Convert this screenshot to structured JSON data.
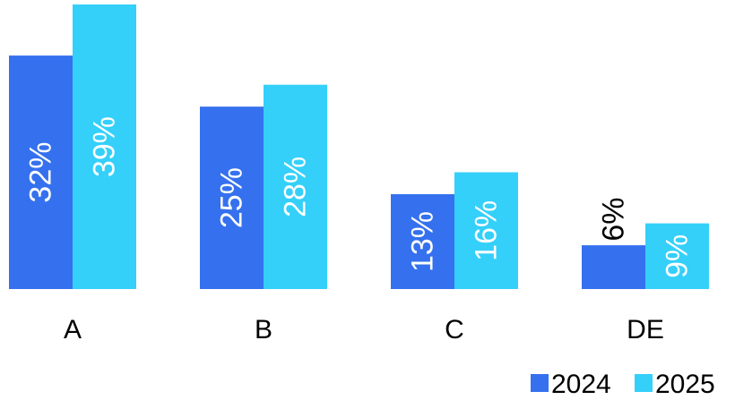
{
  "chart_data": {
    "type": "bar",
    "categories": [
      "A",
      "B",
      "C",
      "DE"
    ],
    "series": [
      {
        "name": "2024",
        "values": [
          32,
          25,
          13,
          6
        ],
        "labels": [
          "32%",
          "25%",
          "13%",
          "6%"
        ],
        "color": "#3571ee"
      },
      {
        "name": "2025",
        "values": [
          39,
          28,
          16,
          9
        ],
        "labels": [
          "39%",
          "28%",
          "16%",
          "9%"
        ],
        "color": "#34d0fa"
      }
    ],
    "title": "",
    "xlabel": "",
    "ylabel": "",
    "ylim": [
      0,
      39
    ],
    "value_unit": "%",
    "grid": false,
    "legend_position": "bottom-right"
  }
}
